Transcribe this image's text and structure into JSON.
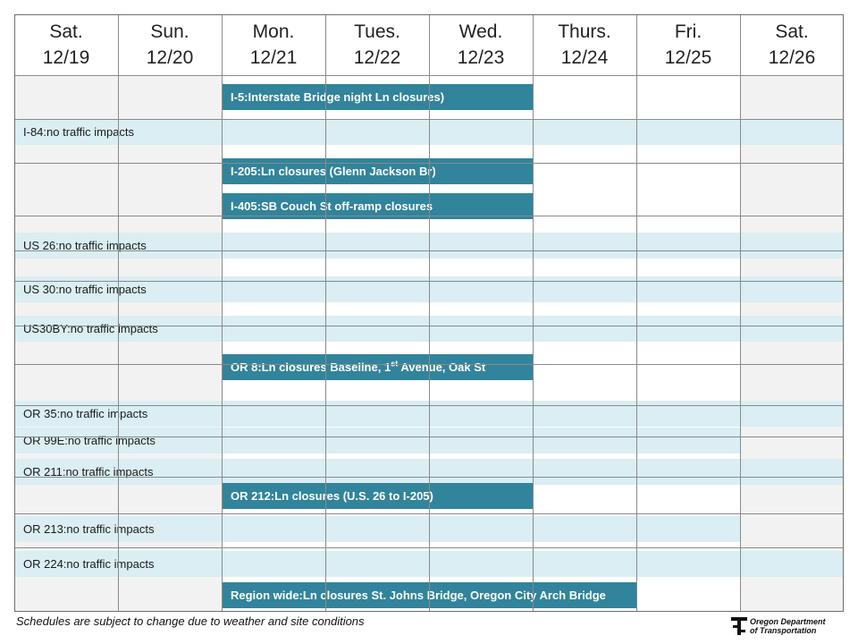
{
  "days": [
    {
      "day": "Sat.",
      "date": "12/19",
      "weekend": true
    },
    {
      "day": "Sun.",
      "date": "12/20",
      "weekend": true
    },
    {
      "day": "Mon.",
      "date": "12/21",
      "weekend": false
    },
    {
      "day": "Tues.",
      "date": "12/22",
      "weekend": false
    },
    {
      "day": "Wed.",
      "date": "12/23",
      "weekend": false
    },
    {
      "day": "Thurs.",
      "date": "12/24",
      "weekend": false
    },
    {
      "day": "Fri.",
      "date": "12/25",
      "weekend": false
    },
    {
      "day": "Sat.",
      "date": "12/26",
      "weekend": true
    }
  ],
  "events": [
    {
      "route": "I-5:",
      "text": "Interstate Bridge night Ln closures)",
      "kind": "closure",
      "start_day": "12/21",
      "end_day": "12/23"
    },
    {
      "route": "I-84:",
      "text": "no traffic impacts",
      "kind": "no-impact",
      "start_day": "12/19",
      "end_day": "12/26"
    },
    {
      "route": "I-205:",
      "text": "Ln closures (Glenn Jackson Br)",
      "kind": "closure",
      "start_day": "12/21",
      "end_day": "12/23"
    },
    {
      "route": "I-405:",
      "text": "SB Couch St off-ramp closures",
      "kind": "closure",
      "start_day": "12/21",
      "end_day": "12/23"
    },
    {
      "route": "US 26:",
      "text": "no traffic impacts",
      "kind": "no-impact",
      "start_day": "12/19",
      "end_day": "12/26"
    },
    {
      "route": "US 30:",
      "text": "no traffic impacts",
      "kind": "no-impact",
      "start_day": "12/19",
      "end_day": "12/26"
    },
    {
      "route": "US30BY:",
      "text": "no traffic impacts",
      "kind": "no-impact",
      "start_day": "12/19",
      "end_day": "12/26"
    },
    {
      "route": "OR 8:",
      "text_before": "Ln closures Baseline, 1",
      "text_sup": "st",
      "text_after": " Avenue, Oak St",
      "kind": "closure",
      "start_day": "12/21",
      "end_day": "12/23"
    },
    {
      "route": "OR 35:",
      "text": "no traffic impacts",
      "kind": "no-impact",
      "start_day": "12/19",
      "end_day": "12/26"
    },
    {
      "route": "OR 99E:",
      "text": "no traffic impacts",
      "kind": "no-impact",
      "start_day": "12/19",
      "end_day": "12/25"
    },
    {
      "route": "OR 211:",
      "text": "no traffic impacts",
      "kind": "no-impact",
      "start_day": "12/19",
      "end_day": "12/26"
    },
    {
      "route": "OR 212:",
      "text": "Ln closures (U.S. 26 to I-205)",
      "kind": "closure",
      "start_day": "12/21",
      "end_day": "12/23"
    },
    {
      "route": "OR 213:",
      "text": "no traffic impacts",
      "kind": "no-impact",
      "start_day": "12/19",
      "end_day": "12/25"
    },
    {
      "route": "OR 224:",
      "text": "no traffic impacts",
      "kind": "no-impact",
      "start_day": "12/19",
      "end_day": "12/26"
    },
    {
      "route": "Region wide:",
      "text": "Ln closures St. Johns Bridge, Oregon City Arch Bridge",
      "kind": "closure",
      "start_day": "12/21",
      "end_day": "12/24"
    }
  ],
  "footnote": "Schedules are subject to change due to weather and site conditions",
  "logo": {
    "line1": "Oregon Department",
    "line2": "of Transportation",
    "icon": "odot-logo-icon"
  },
  "colors": {
    "closure": "#31849b",
    "no_impact": "#daeef3",
    "weekend": "#f2f2f2"
  }
}
